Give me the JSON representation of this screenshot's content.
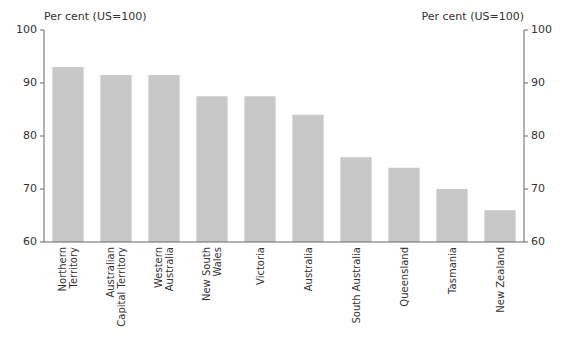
{
  "chart_data": {
    "type": "bar",
    "categories": [
      "Northern\nTerritory",
      "Australian\nCapital Territory",
      "Western\nAustralia",
      "New South\nWales",
      "Victoria",
      "Australia",
      "South Australia",
      "Queensland",
      "Tasmania",
      "New Zealand"
    ],
    "values": [
      93,
      91.5,
      91.5,
      87.5,
      87.5,
      84,
      76,
      74,
      70,
      66
    ],
    "color": "#c8c8c8",
    "ylabel": "Per cent (US=100)",
    "y2label": "Per cent (US=100)",
    "ylim": [
      60,
      100
    ],
    "yticks": [
      60,
      70,
      80,
      90,
      100
    ],
    "y2lim": [
      60,
      100
    ],
    "y2ticks": [
      60,
      70,
      80,
      90,
      100
    ],
    "grid": false
  }
}
